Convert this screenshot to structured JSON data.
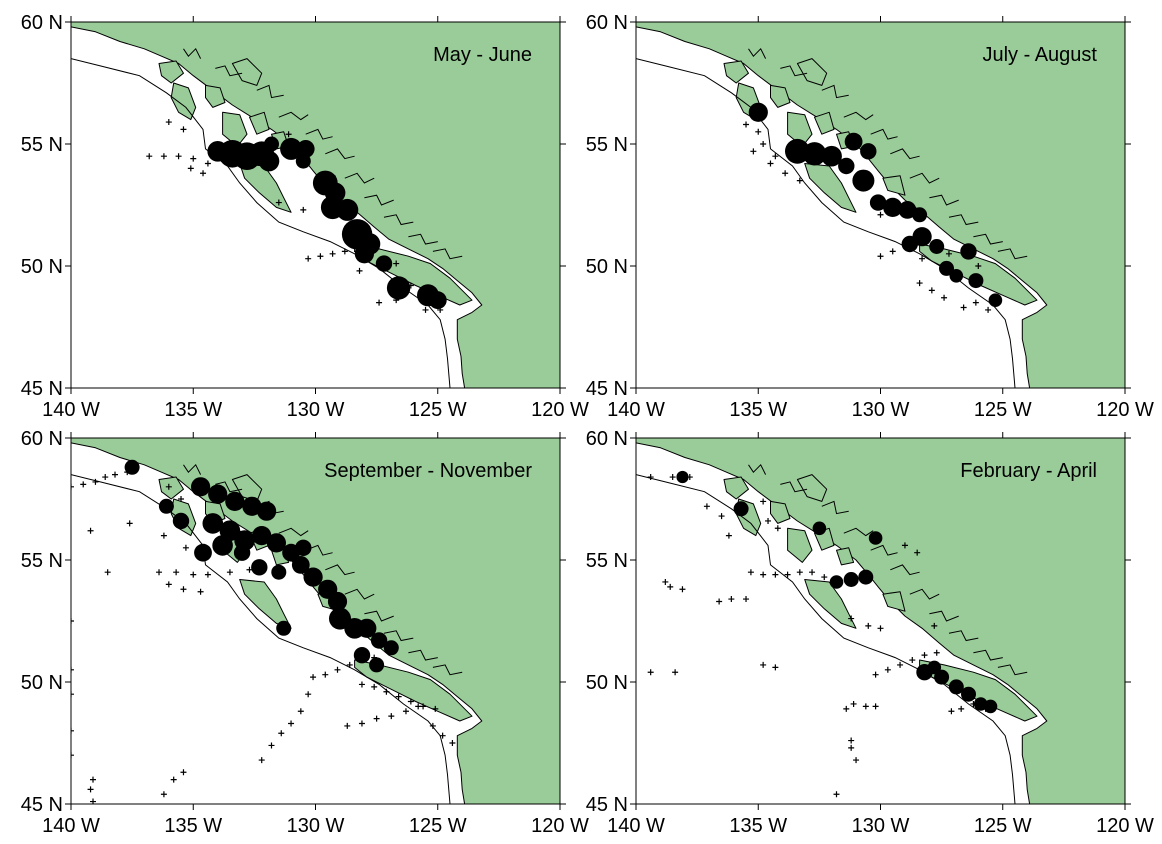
{
  "colors": {
    "land": "#99cc99",
    "water": "#ffffff",
    "marks": "#000000"
  },
  "axes": {
    "lon_ticks": [
      "140 W",
      "135 W",
      "130 W",
      "125 W",
      "120 W"
    ],
    "lat_ticks": [
      "60 N",
      "55 N",
      "50 N",
      "45 N"
    ],
    "lon_range": [
      -140,
      -120
    ],
    "lat_range": [
      45,
      60
    ]
  },
  "panels": [
    {
      "title": "May - June",
      "obs": [
        [
          -136,
          55.9
        ],
        [
          -135.4,
          55.6
        ],
        [
          -136.8,
          54.5
        ],
        [
          -136.2,
          54.5
        ],
        [
          -135.6,
          54.5
        ],
        [
          -135,
          54.4
        ],
        [
          -134.4,
          54.2
        ],
        [
          -135.1,
          54
        ],
        [
          -134.6,
          53.8
        ],
        [
          -130.3,
          50.3
        ],
        [
          -129.8,
          50.4
        ],
        [
          -129.3,
          50.5
        ],
        [
          -128.8,
          50.6
        ],
        [
          -128.3,
          50.6
        ],
        [
          -127.8,
          50.8
        ],
        [
          -127.2,
          50.3
        ],
        [
          -126.7,
          50.1
        ],
        [
          -126.1,
          49.2
        ],
        [
          -126.7,
          48.6
        ],
        [
          -127.4,
          48.5
        ],
        [
          -125.5,
          48.2
        ],
        [
          -124.9,
          48.2
        ],
        [
          -125,
          48.8
        ],
        [
          -131.5,
          52.6
        ],
        [
          -130.5,
          52.3
        ],
        [
          -128.2,
          49.8
        ],
        [
          -131.1,
          55.4
        ]
      ],
      "catch": [
        [
          -133.4,
          54.6,
          1.4
        ],
        [
          -132.8,
          54.5,
          1.4
        ],
        [
          -132.2,
          54.6,
          1.2
        ],
        [
          -134,
          54.7,
          0.9
        ],
        [
          -131.9,
          54.3,
          0.9
        ],
        [
          -131,
          54.8,
          1
        ],
        [
          -130.4,
          54.8,
          0.7
        ],
        [
          -129.6,
          53.4,
          1.2
        ],
        [
          -129.2,
          53,
          0.9
        ],
        [
          -129.3,
          52.4,
          1.1
        ],
        [
          -128.7,
          52.3,
          1
        ],
        [
          -128.3,
          51.3,
          1.6
        ],
        [
          -127.8,
          50.9,
          1
        ],
        [
          -128,
          50.5,
          0.8
        ],
        [
          -127.2,
          50.1,
          0.6
        ],
        [
          -126.6,
          49.1,
          1.1
        ],
        [
          -125.4,
          48.8,
          1
        ],
        [
          -125,
          48.6,
          0.7
        ],
        [
          -130.5,
          54.3,
          0.5
        ],
        [
          -131.8,
          55,
          0.5
        ]
      ]
    },
    {
      "title": "July - August",
      "obs": [
        [
          -135.5,
          55.8
        ],
        [
          -135,
          55.5
        ],
        [
          -134.8,
          55
        ],
        [
          -134.3,
          54.5
        ],
        [
          -135.2,
          54.7
        ],
        [
          -134.5,
          54.2
        ],
        [
          -133.9,
          53.8
        ],
        [
          -133.3,
          53.5
        ],
        [
          -130,
          50.4
        ],
        [
          -129.5,
          50.6
        ],
        [
          -128.8,
          50.8
        ],
        [
          -128.3,
          50.3
        ],
        [
          -127.4,
          48.7
        ],
        [
          -126.6,
          48.3
        ],
        [
          -126.1,
          48.5
        ],
        [
          -125.6,
          48.2
        ],
        [
          -128.4,
          49.3
        ],
        [
          -127.9,
          49
        ],
        [
          -130,
          52.1
        ],
        [
          -127.2,
          50.5
        ],
        [
          -126,
          50
        ]
      ],
      "catch": [
        [
          -135,
          56.3,
          0.8
        ],
        [
          -133.4,
          54.7,
          1.2
        ],
        [
          -132.7,
          54.6,
          1.1
        ],
        [
          -132,
          54.5,
          0.9
        ],
        [
          -131.4,
          54.1,
          0.6
        ],
        [
          -130.7,
          53.5,
          1
        ],
        [
          -130.1,
          52.6,
          0.6
        ],
        [
          -129.5,
          52.4,
          0.8
        ],
        [
          -128.9,
          52.3,
          0.7
        ],
        [
          -128.4,
          52.1,
          0.5
        ],
        [
          -128.3,
          51.2,
          0.8
        ],
        [
          -128.8,
          50.9,
          0.6
        ],
        [
          -127.7,
          50.8,
          0.5
        ],
        [
          -126.4,
          50.6,
          0.6
        ],
        [
          -127.3,
          49.9,
          0.5
        ],
        [
          -126.9,
          49.6,
          0.4
        ],
        [
          -126.1,
          49.4,
          0.5
        ],
        [
          -125.3,
          48.6,
          0.4
        ],
        [
          -131.1,
          55.1,
          0.7
        ],
        [
          -130.5,
          54.7,
          0.6
        ]
      ]
    },
    {
      "title": "September - November",
      "obs": [
        [
          -140,
          58
        ],
        [
          -139.5,
          58.1
        ],
        [
          -139,
          58.2
        ],
        [
          -138.6,
          58.4
        ],
        [
          -138.2,
          58.5
        ],
        [
          -137.7,
          58.6
        ],
        [
          -139.2,
          56.2
        ],
        [
          -138.5,
          54.5
        ],
        [
          -137.6,
          56.5
        ],
        [
          -136,
          58
        ],
        [
          -135.5,
          57.5
        ],
        [
          -136.2,
          56
        ],
        [
          -135.3,
          55.5
        ],
        [
          -136.4,
          54.5
        ],
        [
          -135.7,
          54.5
        ],
        [
          -135,
          54.4
        ],
        [
          -134.4,
          54.4
        ],
        [
          -133.5,
          54.5
        ],
        [
          -132.7,
          54.6
        ],
        [
          -136,
          54
        ],
        [
          -135.4,
          53.8
        ],
        [
          -134.7,
          53.7
        ],
        [
          -140,
          52.5
        ],
        [
          -140,
          50.5
        ],
        [
          -140,
          49.5
        ],
        [
          -140,
          48
        ],
        [
          -140,
          47
        ],
        [
          -139.1,
          46
        ],
        [
          -139.2,
          45.6
        ],
        [
          -139.1,
          45.1
        ],
        [
          -136.2,
          45.4
        ],
        [
          -135.8,
          46
        ],
        [
          -135.4,
          46.3
        ],
        [
          -132.2,
          46.8
        ],
        [
          -131.8,
          47.4
        ],
        [
          -131.4,
          47.9
        ],
        [
          -131,
          48.3
        ],
        [
          -130.6,
          48.8
        ],
        [
          -130.3,
          49.5
        ],
        [
          -130.1,
          50.2
        ],
        [
          -129.6,
          50.3
        ],
        [
          -129.1,
          50.5
        ],
        [
          -128.6,
          50.7
        ],
        [
          -128.1,
          50.9
        ],
        [
          -127.6,
          51
        ],
        [
          -128.1,
          49.9
        ],
        [
          -127.6,
          49.8
        ],
        [
          -127.1,
          49.6
        ],
        [
          -126.6,
          49.4
        ],
        [
          -126.1,
          49.2
        ],
        [
          -125.6,
          49
        ],
        [
          -125.1,
          48.9
        ],
        [
          -128.7,
          48.2
        ],
        [
          -128.1,
          48.3
        ],
        [
          -127.5,
          48.5
        ],
        [
          -126.9,
          48.6
        ],
        [
          -126.3,
          48.8
        ],
        [
          -125.8,
          49
        ],
        [
          -125.2,
          48.2
        ],
        [
          -124.8,
          47.8
        ],
        [
          -124.4,
          47.5
        ]
      ],
      "catch": [
        [
          -137.5,
          58.8,
          0.5
        ],
        [
          -134.7,
          58,
          0.8
        ],
        [
          -134,
          57.7,
          0.8
        ],
        [
          -133.3,
          57.4,
          0.8
        ],
        [
          -132.6,
          57.2,
          0.8
        ],
        [
          -132,
          57,
          0.8
        ],
        [
          -134.2,
          56.5,
          0.9
        ],
        [
          -133.5,
          56.2,
          0.9
        ],
        [
          -132.9,
          55.8,
          0.9
        ],
        [
          -133.8,
          55.6,
          0.9
        ],
        [
          -132.2,
          56,
          0.8
        ],
        [
          -131.6,
          55.7,
          0.8
        ],
        [
          -131,
          55.3,
          0.7
        ],
        [
          -130.6,
          54.8,
          0.7
        ],
        [
          -130.1,
          54.3,
          0.8
        ],
        [
          -129.5,
          53.8,
          0.8
        ],
        [
          -129.1,
          53.3,
          0.8
        ],
        [
          -129,
          52.6,
          1
        ],
        [
          -128.4,
          52.2,
          0.9
        ],
        [
          -127.9,
          52.2,
          0.8
        ],
        [
          -127.4,
          51.7,
          0.6
        ],
        [
          -126.9,
          51.4,
          0.5
        ],
        [
          -128.1,
          51.1,
          0.6
        ],
        [
          -127.5,
          50.7,
          0.5
        ],
        [
          -131.3,
          52.2,
          0.5
        ],
        [
          -130.5,
          55.5,
          0.6
        ],
        [
          -135.5,
          56.6,
          0.6
        ],
        [
          -136.1,
          57.2,
          0.5
        ],
        [
          -134.6,
          55.3,
          0.7
        ],
        [
          -133,
          55.3,
          0.6
        ],
        [
          -132.3,
          54.7,
          0.6
        ],
        [
          -131.5,
          54.5,
          0.5
        ]
      ]
    },
    {
      "title": "February - April",
      "obs": [
        [
          -139.4,
          58.4
        ],
        [
          -138.5,
          58.4
        ],
        [
          -137.8,
          58.4
        ],
        [
          -137.1,
          57.2
        ],
        [
          -136.2,
          56
        ],
        [
          -136.5,
          56.8
        ],
        [
          -134.8,
          57.4
        ],
        [
          -134.6,
          56.6
        ],
        [
          -134.2,
          56.3
        ],
        [
          -135.3,
          54.5
        ],
        [
          -134.8,
          54.4
        ],
        [
          -134.3,
          54.4
        ],
        [
          -133.8,
          54.4
        ],
        [
          -133.3,
          54.5
        ],
        [
          -132.8,
          54.5
        ],
        [
          -132.3,
          54.3
        ],
        [
          -138.8,
          54.1
        ],
        [
          -138.6,
          53.9
        ],
        [
          -138.1,
          53.8
        ],
        [
          -136.6,
          53.3
        ],
        [
          -136.1,
          53.4
        ],
        [
          -135.5,
          53.4
        ],
        [
          -134.8,
          50.7
        ],
        [
          -134.3,
          50.6
        ],
        [
          -139.4,
          50.4
        ],
        [
          -138.4,
          50.4
        ],
        [
          -131.4,
          48.9
        ],
        [
          -131.1,
          49.1
        ],
        [
          -130.6,
          49
        ],
        [
          -130.2,
          49
        ],
        [
          -131.2,
          47.6
        ],
        [
          -131.2,
          47.3
        ],
        [
          -131,
          46.8
        ],
        [
          -131.8,
          45.4
        ],
        [
          -130.2,
          50.3
        ],
        [
          -129.7,
          50.5
        ],
        [
          -129.2,
          50.7
        ],
        [
          -128.7,
          50.9
        ],
        [
          -128.2,
          51.1
        ],
        [
          -127.7,
          51.2
        ],
        [
          -127.1,
          48.8
        ],
        [
          -126.7,
          48.9
        ],
        [
          -126.2,
          49.1
        ],
        [
          -125.7,
          48.9
        ],
        [
          -131.2,
          52.6
        ],
        [
          -130.5,
          52.3
        ],
        [
          -130,
          52.2
        ],
        [
          -127.8,
          52.3
        ],
        [
          -129,
          55.6
        ],
        [
          -128.5,
          55.3
        ]
      ],
      "catch": [
        [
          -138.1,
          58.4,
          0.3
        ],
        [
          -135.7,
          57.1,
          0.5
        ],
        [
          -131.2,
          54.2,
          0.5
        ],
        [
          -130.6,
          54.3,
          0.5
        ],
        [
          -131.8,
          54.1,
          0.4
        ],
        [
          -128.2,
          50.4,
          0.6
        ],
        [
          -127.5,
          50.2,
          0.5
        ],
        [
          -126.9,
          49.8,
          0.5
        ],
        [
          -126.4,
          49.5,
          0.5
        ],
        [
          -125.9,
          49.1,
          0.4
        ],
        [
          -125.5,
          49,
          0.4
        ],
        [
          -127.8,
          50.6,
          0.4
        ],
        [
          -132.5,
          56.3,
          0.4
        ],
        [
          -130.2,
          55.9,
          0.4
        ]
      ]
    }
  ]
}
